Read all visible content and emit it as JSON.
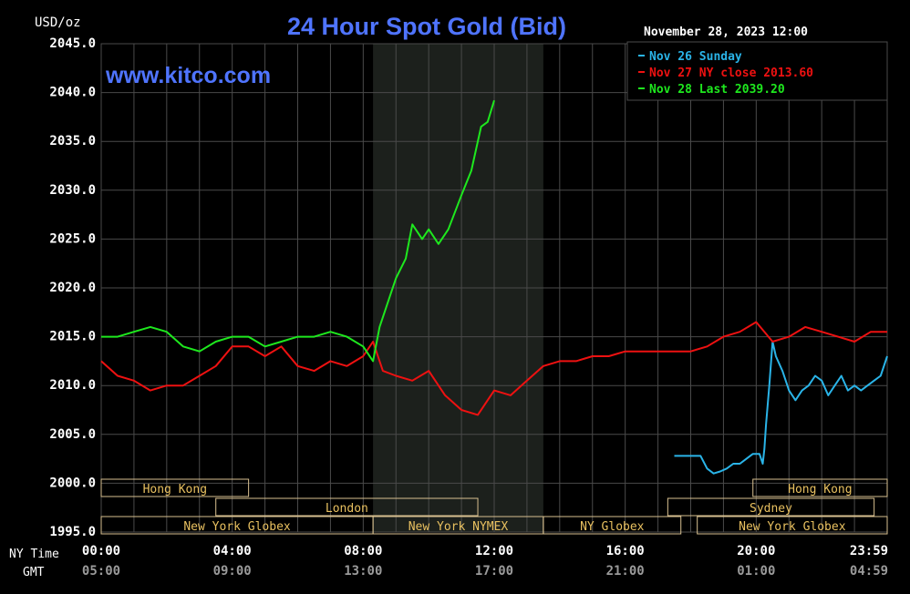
{
  "colors": {
    "background": "#000000",
    "plot_background": "#000000",
    "session_shade": "#1c201c",
    "grid": "#4a4a4a",
    "text": "#ffffff",
    "title": "#4f74ff",
    "watermark": "#4f74ff",
    "market_box": "#d8c090",
    "market_text": "#e8c060",
    "series_nov26": "#2ab4e8",
    "series_nov27": "#ee1111",
    "series_nov28": "#1ee81e",
    "gmt_text": "#9a9a9a"
  },
  "header": {
    "unit": "USD/oz",
    "title": "24 Hour Spot Gold (Bid)",
    "datetime": "November 28, 2023 12:00",
    "watermark": "www.kitco.com"
  },
  "bottom": {
    "ny_label": "NY Time",
    "gmt_label": "GMT"
  },
  "chart_data": {
    "type": "line",
    "title": "24 Hour Spot Gold (Bid)",
    "ylabel": "USD/oz",
    "ylim": [
      1995,
      2045
    ],
    "yticks": [
      "2045.0",
      "2040.0",
      "2035.0",
      "2030.0",
      "2025.0",
      "2020.0",
      "2015.0",
      "2010.0",
      "2005.0",
      "2000.0",
      "1995.0"
    ],
    "xlim": [
      0,
      24
    ],
    "xticks_ny": [
      "00:00",
      "04:00",
      "08:00",
      "12:00",
      "16:00",
      "20:00",
      "23:59"
    ],
    "xticks_gmt": [
      "05:00",
      "09:00",
      "13:00",
      "17:00",
      "21:00",
      "01:00",
      "04:59"
    ],
    "grid": true,
    "legend": {
      "placement": "top-right",
      "entries": [
        "Nov 26 Sunday",
        "Nov 27 NY close 2013.60",
        "Nov 28 Last 2039.20"
      ]
    },
    "shaded_session_hours": [
      8.3,
      13.5
    ],
    "market_sessions": [
      {
        "name": "Hong Kong",
        "row": 0,
        "start": 0,
        "end": 4.5
      },
      {
        "name": "Hong Kong",
        "row": 0,
        "start": 19.9,
        "end": 24
      },
      {
        "name": "London",
        "row": 1,
        "start": 3.5,
        "end": 11.5
      },
      {
        "name": "Sydney",
        "row": 1,
        "start": 17.3,
        "end": 23.6
      },
      {
        "name": "New York Globex",
        "row": 2,
        "start": 0,
        "end": 8.3
      },
      {
        "name": "New York NYMEX",
        "row": 2,
        "start": 8.3,
        "end": 13.5
      },
      {
        "name": "NY Globex",
        "row": 2,
        "start": 13.5,
        "end": 17.7
      },
      {
        "name": "New York Globex",
        "row": 2,
        "start": 18.2,
        "end": 24
      }
    ],
    "series": [
      {
        "name": "Nov 26 Sunday",
        "x": [
          17.5,
          17.8,
          18.1,
          18.3,
          18.5,
          18.7,
          18.9,
          19.1,
          19.3,
          19.5,
          19.7,
          19.9,
          20.1,
          20.2,
          20.25,
          20.3,
          20.4,
          20.5,
          20.6,
          20.8,
          21.0,
          21.2,
          21.4,
          21.6,
          21.8,
          22.0,
          22.2,
          22.4,
          22.6,
          22.8,
          23.0,
          23.2,
          23.4,
          23.6,
          23.8,
          24.0
        ],
        "values": [
          2002.8,
          2002.8,
          2002.8,
          2002.8,
          2001.5,
          2001.0,
          2001.2,
          2001.5,
          2002.0,
          2002.0,
          2002.5,
          2003.0,
          2003.0,
          2002.0,
          2003.5,
          2006.0,
          2010.0,
          2014.5,
          2013.0,
          2011.5,
          2009.5,
          2008.5,
          2009.5,
          2010.0,
          2011.0,
          2010.5,
          2009.0,
          2010.0,
          2011.0,
          2009.5,
          2010.0,
          2009.5,
          2010.0,
          2010.5,
          2011.0,
          2013.0
        ]
      },
      {
        "name": "Nov 27 NY close 2013.60",
        "x": [
          0.0,
          0.5,
          1.0,
          1.5,
          2.0,
          2.5,
          3.0,
          3.5,
          4.0,
          4.5,
          5.0,
          5.5,
          6.0,
          6.5,
          7.0,
          7.5,
          8.0,
          8.3,
          8.6,
          9.0,
          9.5,
          10.0,
          10.5,
          11.0,
          11.5,
          12.0,
          12.5,
          13.0,
          13.5,
          14.0,
          14.5,
          15.0,
          15.5,
          16.0,
          16.5,
          17.0,
          17.5,
          18.0,
          18.5,
          19.0,
          19.5,
          20.0,
          20.5,
          21.0,
          21.5,
          22.0,
          22.5,
          23.0,
          23.5,
          24.0
        ],
        "values": [
          2012.5,
          2011.0,
          2010.5,
          2009.5,
          2010.0,
          2010.0,
          2011.0,
          2012.0,
          2014.0,
          2014.0,
          2013.0,
          2014.0,
          2012.0,
          2011.5,
          2012.5,
          2012.0,
          2013.0,
          2014.5,
          2011.5,
          2011.0,
          2010.5,
          2011.5,
          2009.0,
          2007.5,
          2007.0,
          2009.5,
          2009.0,
          2010.5,
          2012.0,
          2012.5,
          2012.5,
          2013.0,
          2013.0,
          2013.5,
          2013.5,
          2013.5,
          2013.5,
          2013.5,
          2014.0,
          2015.0,
          2015.5,
          2016.5,
          2014.5,
          2015.0,
          2016.0,
          2015.5,
          2015.0,
          2014.5,
          2015.5,
          2015.5
        ]
      },
      {
        "name": "Nov 28 Last 2039.20",
        "x": [
          0.0,
          0.5,
          1.0,
          1.5,
          2.0,
          2.5,
          3.0,
          3.5,
          4.0,
          4.5,
          5.0,
          5.5,
          6.0,
          6.5,
          7.0,
          7.5,
          8.0,
          8.3,
          8.5,
          8.8,
          9.0,
          9.3,
          9.5,
          9.8,
          10.0,
          10.3,
          10.6,
          11.0,
          11.3,
          11.6,
          11.8,
          12.0
        ],
        "values": [
          2015.0,
          2015.0,
          2015.5,
          2016.0,
          2015.5,
          2014.0,
          2013.5,
          2014.5,
          2015.0,
          2015.0,
          2014.0,
          2014.5,
          2015.0,
          2015.0,
          2015.5,
          2015.0,
          2014.0,
          2012.5,
          2016.0,
          2019.0,
          2021.0,
          2023.0,
          2026.5,
          2025.0,
          2026.0,
          2024.5,
          2026.0,
          2029.5,
          2032.0,
          2036.5,
          2037.0,
          2039.2
        ]
      }
    ]
  }
}
